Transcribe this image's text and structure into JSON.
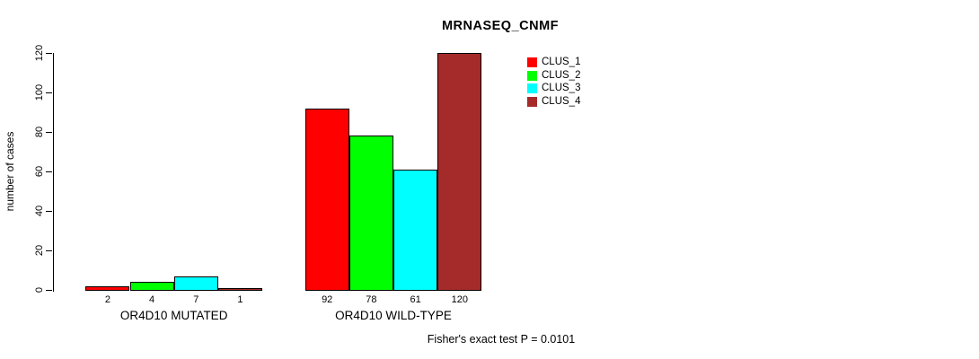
{
  "chart_data": {
    "type": "bar",
    "title": "MRNASEQ_CNMF",
    "xlabel": "",
    "ylabel": "number of cases",
    "ylim": [
      0,
      120
    ],
    "yticks": [
      0,
      20,
      40,
      60,
      80,
      100,
      120
    ],
    "grid": false,
    "legend_position": "top-right-inside",
    "bar_value_labels_shown": true,
    "categories": [
      "OR4D10 MUTATED",
      "OR4D10 WILD-TYPE"
    ],
    "series": [
      {
        "name": "CLUS_1",
        "color": "#ff0000",
        "values": [
          2,
          92
        ]
      },
      {
        "name": "CLUS_2",
        "color": "#00ff00",
        "values": [
          4,
          78
        ]
      },
      {
        "name": "CLUS_3",
        "color": "#00ffff",
        "values": [
          7,
          61
        ]
      },
      {
        "name": "CLUS_4",
        "color": "#a52a2a",
        "values": [
          1,
          120
        ]
      }
    ],
    "groups": [
      {
        "label": "OR4D10 MUTATED",
        "values": [
          2,
          4,
          7,
          1
        ]
      },
      {
        "label": "OR4D10 WILD-TYPE",
        "values": [
          92,
          78,
          61,
          120
        ]
      }
    ],
    "annotation": "Fisher's exact test P = 0.0101"
  }
}
